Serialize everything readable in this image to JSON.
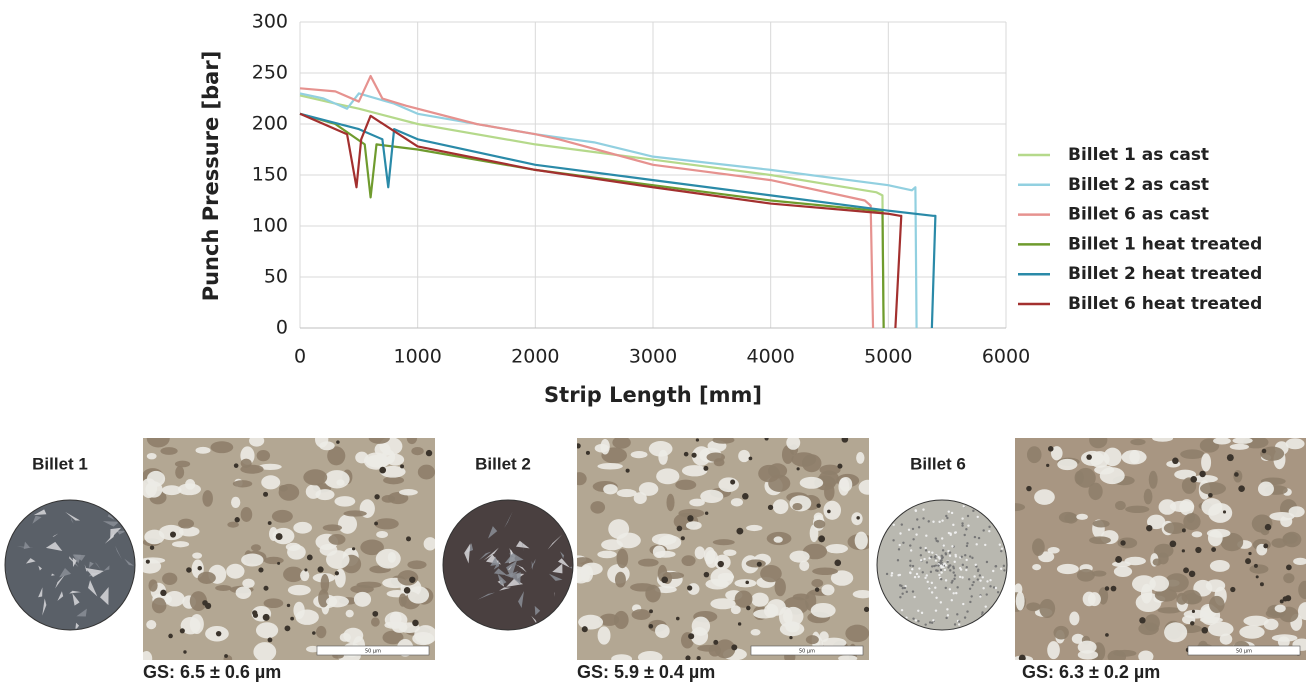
{
  "chart_data": {
    "type": "line",
    "xlabel": "Strip Length [mm]",
    "ylabel": "Punch Pressure [bar]",
    "xlim": [
      0,
      6000
    ],
    "xticks": [
      0,
      1000,
      2000,
      3000,
      4000,
      5000,
      6000
    ],
    "ylim": [
      0,
      300
    ],
    "yticks": [
      0,
      50,
      100,
      150,
      200,
      250,
      300
    ],
    "grid": true,
    "legend": "right",
    "series": [
      {
        "name": "Billet 1 as cast",
        "color": "#b5d98b",
        "x": [
          0,
          300,
          500,
          1000,
          2000,
          3000,
          4000,
          4900,
          4950,
          4960
        ],
        "values": [
          228,
          220,
          215,
          200,
          180,
          165,
          150,
          133,
          130,
          0
        ]
      },
      {
        "name": "Billet 2 as cast",
        "color": "#92d0e0",
        "x": [
          0,
          200,
          400,
          500,
          800,
          1000,
          2000,
          2500,
          3000,
          4000,
          5000,
          5200,
          5230,
          5240
        ],
        "values": [
          230,
          225,
          215,
          230,
          220,
          210,
          190,
          182,
          168,
          155,
          140,
          135,
          138,
          0
        ]
      },
      {
        "name": "Billet 6 as cast",
        "color": "#e6928f",
        "x": [
          0,
          300,
          500,
          600,
          700,
          900,
          1500,
          2000,
          2200,
          3000,
          4000,
          4800,
          4850,
          4870
        ],
        "values": [
          235,
          232,
          222,
          247,
          225,
          218,
          200,
          190,
          185,
          160,
          145,
          125,
          120,
          0
        ]
      },
      {
        "name": "Billet 1 heat treated",
        "color": "#6f9b2e",
        "x": [
          0,
          300,
          550,
          600,
          650,
          1000,
          2000,
          3000,
          4000,
          4900,
          4950,
          4960
        ],
        "values": [
          210,
          200,
          180,
          128,
          180,
          175,
          155,
          140,
          125,
          115,
          115,
          0
        ]
      },
      {
        "name": "Billet 2 heat treated",
        "color": "#2a8aa8",
        "x": [
          0,
          500,
          700,
          750,
          800,
          1000,
          2000,
          3000,
          4000,
          5000,
          5380,
          5400,
          5370
        ],
        "values": [
          210,
          195,
          185,
          138,
          195,
          185,
          160,
          145,
          130,
          115,
          110,
          110,
          0
        ]
      },
      {
        "name": "Billet 6 heat treated",
        "color": "#a3302f",
        "x": [
          0,
          400,
          480,
          520,
          600,
          1000,
          2000,
          3000,
          4000,
          5000,
          5100,
          5110,
          5060
        ],
        "values": [
          210,
          190,
          138,
          185,
          208,
          178,
          155,
          138,
          122,
          112,
          110,
          110,
          0
        ]
      }
    ]
  },
  "panels": [
    {
      "label": "Billet 1",
      "caption": "GS: 6.5 ± 0.6 µm",
      "scale_bar": "50 µm"
    },
    {
      "label": "Billet 2",
      "caption": "GS: 5.9 ± 0.4 µm",
      "scale_bar": "50 µm"
    },
    {
      "label": "Billet 6",
      "caption": "GS: 6.3 ± 0.2 µm",
      "scale_bar": "50 µm"
    }
  ]
}
